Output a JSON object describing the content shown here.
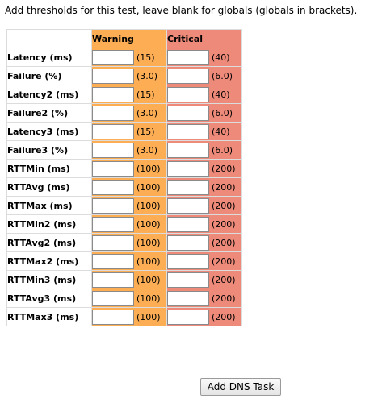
{
  "intro_text": "Add thresholds for this test, leave blank for globals (globals in brackets).",
  "columns": {
    "warning": "Warning",
    "critical": "Critical"
  },
  "colors": {
    "warning": "#fdae55",
    "critical": "#ee8a7a"
  },
  "rows": [
    {
      "label": "Latency (ms)",
      "warning_value": "",
      "warning_global": "(15)",
      "critical_value": "",
      "critical_global": "(40)"
    },
    {
      "label": "Failure (%)",
      "warning_value": "",
      "warning_global": "(3.0)",
      "critical_value": "",
      "critical_global": "(6.0)"
    },
    {
      "label": "Latency2 (ms)",
      "warning_value": "",
      "warning_global": "(15)",
      "critical_value": "",
      "critical_global": "(40)"
    },
    {
      "label": "Failure2 (%)",
      "warning_value": "",
      "warning_global": "(3.0)",
      "critical_value": "",
      "critical_global": "(6.0)"
    },
    {
      "label": "Latency3 (ms)",
      "warning_value": "",
      "warning_global": "(15)",
      "critical_value": "",
      "critical_global": "(40)"
    },
    {
      "label": "Failure3 (%)",
      "warning_value": "",
      "warning_global": "(3.0)",
      "critical_value": "",
      "critical_global": "(6.0)"
    },
    {
      "label": "RTTMin (ms)",
      "warning_value": "",
      "warning_global": "(100)",
      "critical_value": "",
      "critical_global": "(200)"
    },
    {
      "label": "RTTAvg (ms)",
      "warning_value": "",
      "warning_global": "(100)",
      "critical_value": "",
      "critical_global": "(200)"
    },
    {
      "label": "RTTMax (ms)",
      "warning_value": "",
      "warning_global": "(100)",
      "critical_value": "",
      "critical_global": "(200)"
    },
    {
      "label": "RTTMin2 (ms)",
      "warning_value": "",
      "warning_global": "(100)",
      "critical_value": "",
      "critical_global": "(200)"
    },
    {
      "label": "RTTAvg2 (ms)",
      "warning_value": "",
      "warning_global": "(100)",
      "critical_value": "",
      "critical_global": "(200)"
    },
    {
      "label": "RTTMax2 (ms)",
      "warning_value": "",
      "warning_global": "(100)",
      "critical_value": "",
      "critical_global": "(200)"
    },
    {
      "label": "RTTMin3 (ms)",
      "warning_value": "",
      "warning_global": "(100)",
      "critical_value": "",
      "critical_global": "(200)"
    },
    {
      "label": "RTTAvg3 (ms)",
      "warning_value": "",
      "warning_global": "(100)",
      "critical_value": "",
      "critical_global": "(200)"
    },
    {
      "label": "RTTMax3 (ms)",
      "warning_value": "",
      "warning_global": "(100)",
      "critical_value": "",
      "critical_global": "(200)"
    }
  ],
  "submit_label": "Add DNS Task"
}
